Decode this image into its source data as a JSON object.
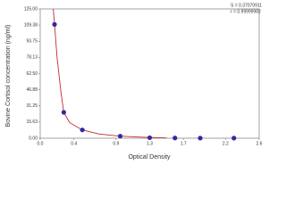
{
  "chart_data": {
    "type": "scatter",
    "y_label": "Bovine Cortisol concentration (ng/ml)",
    "x_label": "Optical Density",
    "annotations": [
      "S = 0.37070911",
      "r = 0.99999982"
    ],
    "xlim": [
      0,
      2.6
    ],
    "ylim": [
      0,
      125
    ],
    "xticks": [
      {
        "value": 0,
        "label": "0.0"
      },
      0.4,
      0.9,
      1.3,
      1.7,
      2.2,
      2.6
    ],
    "yticks": [
      {
        "value": 0,
        "label": "0.00"
      },
      {
        "value": 15.625,
        "label": "15.63"
      },
      31.25,
      {
        "value": 46.875,
        "label": "46.88"
      },
      {
        "value": 62.5,
        "label": "62.50"
      },
      {
        "value": 78.125,
        "label": "78.13"
      },
      93.75,
      {
        "value": 109.375,
        "label": "109.38"
      },
      {
        "value": 125,
        "label": "125.00"
      }
    ],
    "series": [
      {
        "mode": "markers",
        "color": "#35279a",
        "x": [
          0.17,
          0.28,
          0.5,
          0.95,
          1.3,
          1.6,
          1.9,
          2.3
        ],
        "values": [
          110,
          25,
          8,
          2,
          0.5,
          0.2,
          0.1,
          0.1
        ]
      },
      {
        "mode": "line",
        "color": "#c8282d",
        "x": [
          0.155,
          0.17,
          0.2,
          0.25,
          0.28,
          0.35,
          0.5,
          0.7,
          0.95,
          1.2,
          1.5
        ],
        "values": [
          125,
          110,
          78,
          42,
          25,
          15,
          8,
          4,
          2,
          1,
          0.3
        ]
      }
    ]
  }
}
